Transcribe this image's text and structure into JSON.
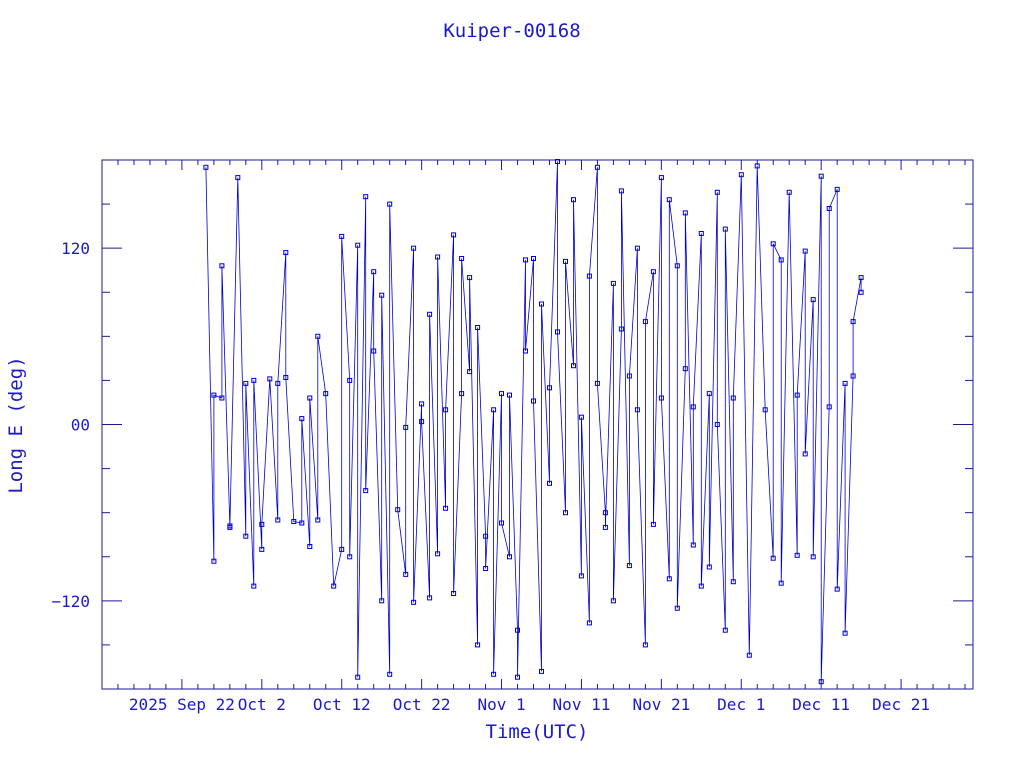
{
  "chart_data": {
    "type": "scatter",
    "title": "Kuiper-00168",
    "xlabel": "Time(UTC)",
    "ylabel": "Long E (deg)",
    "x_tick_labels": [
      "2025 Sep 22",
      "Oct  2",
      "Oct 12",
      "Oct 22",
      "Nov  1",
      "Nov 11",
      "Nov 21",
      "Dec  1",
      "Dec 11",
      "Dec 21"
    ],
    "x_tick_dates": [
      "2025-09-22",
      "2025-10-02",
      "2025-10-12",
      "2025-10-22",
      "2025-11-01",
      "2025-11-11",
      "2025-11-21",
      "2025-12-01",
      "2025-12-11",
      "2025-12-21"
    ],
    "xlim": [
      "2025-09-12",
      "2025-12-30"
    ],
    "y_ticks": [
      -120,
      0,
      120
    ],
    "y_tick_labels": [
      "−120",
      "00",
      "120"
    ],
    "ylim": [
      -180,
      180
    ],
    "grid": false,
    "series": [
      {
        "color": "#0000cc",
        "marker": "square",
        "points": [
          [
            "2025-09-25",
            175
          ],
          [
            "2025-09-26",
            -93
          ],
          [
            "2025-09-26",
            20
          ],
          [
            "2025-09-27",
            18
          ],
          [
            "2025-09-27",
            108
          ],
          [
            "2025-09-28",
            -70
          ],
          [
            "2025-09-28",
            -69
          ],
          [
            "2025-09-29",
            168
          ],
          [
            "2025-09-30",
            -76
          ],
          [
            "2025-09-30",
            28
          ],
          [
            "2025-10-01",
            -110
          ],
          [
            "2025-10-01",
            30
          ],
          [
            "2025-10-02",
            -85
          ],
          [
            "2025-10-02",
            -68
          ],
          [
            "2025-10-03",
            31
          ],
          [
            "2025-10-04",
            -65
          ],
          [
            "2025-10-04",
            28
          ],
          [
            "2025-10-05",
            117
          ],
          [
            "2025-10-05",
            32
          ],
          [
            "2025-10-06",
            -66
          ],
          [
            "2025-10-07",
            -67
          ],
          [
            "2025-10-07",
            4
          ],
          [
            "2025-10-08",
            -83
          ],
          [
            "2025-10-08",
            18
          ],
          [
            "2025-10-09",
            -65
          ],
          [
            "2025-10-09",
            60
          ],
          [
            "2025-10-10",
            21
          ],
          [
            "2025-10-11",
            -110
          ],
          [
            "2025-10-12",
            -85
          ],
          [
            "2025-10-12",
            128
          ],
          [
            "2025-10-13",
            30
          ],
          [
            "2025-10-13",
            -90
          ],
          [
            "2025-10-14",
            122
          ],
          [
            "2025-10-14",
            -172
          ],
          [
            "2025-10-15",
            155
          ],
          [
            "2025-10-15",
            -45
          ],
          [
            "2025-10-16",
            104
          ],
          [
            "2025-10-16",
            50
          ],
          [
            "2025-10-17",
            -120
          ],
          [
            "2025-10-17",
            88
          ],
          [
            "2025-10-18",
            -170
          ],
          [
            "2025-10-18",
            150
          ],
          [
            "2025-10-19",
            -58
          ],
          [
            "2025-10-20",
            -102
          ],
          [
            "2025-10-20",
            -2
          ],
          [
            "2025-10-21",
            120
          ],
          [
            "2025-10-21",
            -121
          ],
          [
            "2025-10-22",
            14
          ],
          [
            "2025-10-22",
            2
          ],
          [
            "2025-10-23",
            -118
          ],
          [
            "2025-10-23",
            75
          ],
          [
            "2025-10-24",
            -88
          ],
          [
            "2025-10-24",
            114
          ],
          [
            "2025-10-25",
            -57
          ],
          [
            "2025-10-25",
            10
          ],
          [
            "2025-10-26",
            129
          ],
          [
            "2025-10-26",
            -115
          ],
          [
            "2025-10-27",
            21
          ],
          [
            "2025-10-27",
            113
          ],
          [
            "2025-10-28",
            36
          ],
          [
            "2025-10-28",
            100
          ],
          [
            "2025-10-29",
            -150
          ],
          [
            "2025-10-29",
            66
          ],
          [
            "2025-10-30",
            -76
          ],
          [
            "2025-10-30",
            -98
          ],
          [
            "2025-10-31",
            10
          ],
          [
            "2025-10-31",
            -170
          ],
          [
            "2025-11-01",
            21
          ],
          [
            "2025-11-01",
            -67
          ],
          [
            "2025-11-02",
            -90
          ],
          [
            "2025-11-02",
            20
          ],
          [
            "2025-11-03",
            -140
          ],
          [
            "2025-11-03",
            -172
          ],
          [
            "2025-11-04",
            112
          ],
          [
            "2025-11-04",
            50
          ],
          [
            "2025-11-05",
            113
          ],
          [
            "2025-11-05",
            16
          ],
          [
            "2025-11-06",
            -168
          ],
          [
            "2025-11-06",
            82
          ],
          [
            "2025-11-07",
            -40
          ],
          [
            "2025-11-07",
            25
          ],
          [
            "2025-11-08",
            179
          ],
          [
            "2025-11-08",
            63
          ],
          [
            "2025-11-09",
            -60
          ],
          [
            "2025-11-09",
            111
          ],
          [
            "2025-11-10",
            40
          ],
          [
            "2025-11-10",
            153
          ],
          [
            "2025-11-11",
            -103
          ],
          [
            "2025-11-11",
            5
          ],
          [
            "2025-11-12",
            -135
          ],
          [
            "2025-11-12",
            101
          ],
          [
            "2025-11-13",
            175
          ],
          [
            "2025-11-13",
            28
          ],
          [
            "2025-11-14",
            -60
          ],
          [
            "2025-11-14",
            -70
          ],
          [
            "2025-11-15",
            96
          ],
          [
            "2025-11-15",
            -120
          ],
          [
            "2025-11-16",
            65
          ],
          [
            "2025-11-16",
            159
          ],
          [
            "2025-11-17",
            -96
          ],
          [
            "2025-11-17",
            33
          ],
          [
            "2025-11-18",
            120
          ],
          [
            "2025-11-18",
            10
          ],
          [
            "2025-11-19",
            -150
          ],
          [
            "2025-11-19",
            70
          ],
          [
            "2025-11-20",
            104
          ],
          [
            "2025-11-20",
            -68
          ],
          [
            "2025-11-21",
            168
          ],
          [
            "2025-11-21",
            18
          ],
          [
            "2025-11-22",
            -105
          ],
          [
            "2025-11-22",
            153
          ],
          [
            "2025-11-23",
            108
          ],
          [
            "2025-11-23",
            -125
          ],
          [
            "2025-11-24",
            38
          ],
          [
            "2025-11-24",
            144
          ],
          [
            "2025-11-25",
            -82
          ],
          [
            "2025-11-25",
            12
          ],
          [
            "2025-11-26",
            130
          ],
          [
            "2025-11-26",
            -110
          ],
          [
            "2025-11-27",
            21
          ],
          [
            "2025-11-27",
            -97
          ],
          [
            "2025-11-28",
            158
          ],
          [
            "2025-11-28",
            0
          ],
          [
            "2025-11-29",
            -140
          ],
          [
            "2025-11-29",
            133
          ],
          [
            "2025-11-30",
            -107
          ],
          [
            "2025-11-30",
            18
          ],
          [
            "2025-12-01",
            170
          ],
          [
            "2025-12-02",
            -157
          ],
          [
            "2025-12-03",
            176
          ],
          [
            "2025-12-04",
            10
          ],
          [
            "2025-12-05",
            -91
          ],
          [
            "2025-12-05",
            123
          ],
          [
            "2025-12-06",
            112
          ],
          [
            "2025-12-06",
            -108
          ],
          [
            "2025-12-07",
            158
          ],
          [
            "2025-12-08",
            -89
          ],
          [
            "2025-12-08",
            20
          ],
          [
            "2025-12-09",
            118
          ],
          [
            "2025-12-09",
            -20
          ],
          [
            "2025-12-10",
            85
          ],
          [
            "2025-12-10",
            -90
          ],
          [
            "2025-12-11",
            169
          ],
          [
            "2025-12-11",
            -175
          ],
          [
            "2025-12-12",
            12
          ],
          [
            "2025-12-12",
            147
          ],
          [
            "2025-12-13",
            160
          ],
          [
            "2025-12-13",
            -112
          ],
          [
            "2025-12-14",
            28
          ],
          [
            "2025-12-14",
            -142
          ],
          [
            "2025-12-15",
            33
          ],
          [
            "2025-12-15",
            70
          ],
          [
            "2025-12-16",
            100
          ],
          [
            "2025-12-16",
            90
          ]
        ]
      }
    ]
  }
}
